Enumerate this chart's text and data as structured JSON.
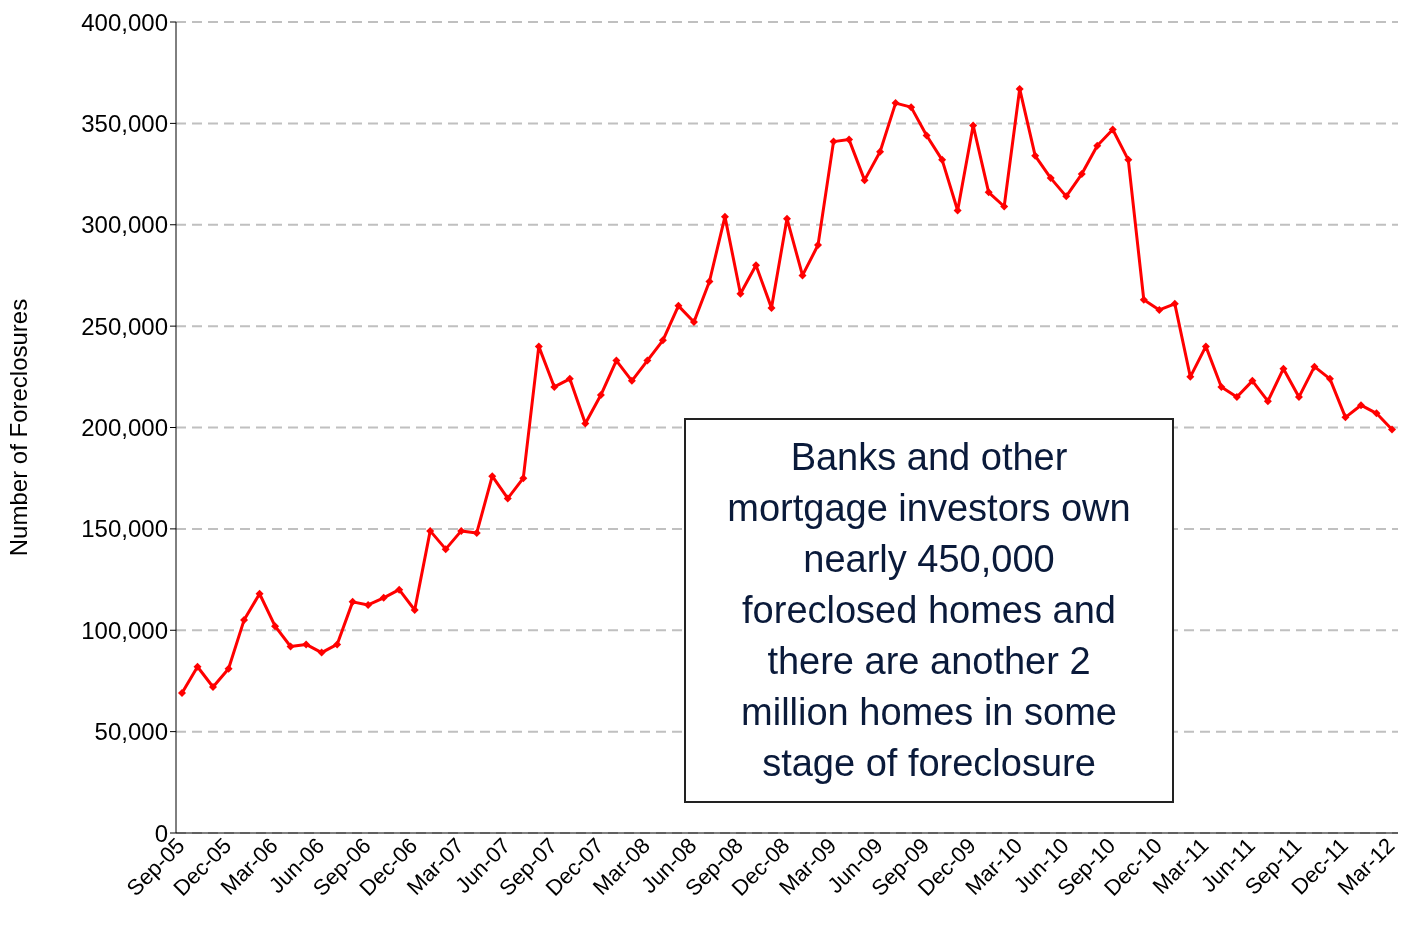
{
  "chart_data": {
    "type": "line",
    "ylabel": "Number of Foreclosures",
    "categories": [
      "Sep-05",
      null,
      null,
      "Dec-05",
      null,
      null,
      "Mar-06",
      null,
      null,
      "Jun-06",
      null,
      null,
      "Sep-06",
      null,
      null,
      "Dec-06",
      null,
      null,
      "Mar-07",
      null,
      null,
      "Jun-07",
      null,
      null,
      "Sep-07",
      null,
      null,
      "Dec-07",
      null,
      null,
      "Mar-08",
      null,
      null,
      "Jun-08",
      null,
      null,
      "Sep-08",
      null,
      null,
      "Dec-08",
      null,
      null,
      "Mar-09",
      null,
      null,
      "Jun-09",
      null,
      null,
      "Sep-09",
      null,
      null,
      "Dec-09",
      null,
      null,
      "Mar-10",
      null,
      null,
      "Jun-10",
      null,
      null,
      "Sep-10",
      null,
      null,
      "Dec-10",
      null,
      null,
      "Mar-11",
      null,
      null,
      "Jun-11",
      null,
      null,
      "Sep-11",
      null,
      null,
      "Dec-11",
      null,
      null,
      "Mar-12"
    ],
    "series": [
      {
        "color": "#ff0000",
        "values": [
          69000,
          82000,
          72000,
          81000,
          105000,
          118000,
          102000,
          92000,
          93000,
          89000,
          93000,
          114000,
          112500,
          116000,
          120000,
          110000,
          149000,
          140000,
          149000,
          148000,
          176000,
          165000,
          175000,
          240000,
          220000,
          224000,
          202000,
          216000,
          233000,
          223000,
          233000,
          243000,
          260000,
          252000,
          272000,
          304000,
          266000,
          280000,
          259000,
          303000,
          275000,
          290000,
          341000,
          342000,
          322000,
          336000,
          360000,
          358000,
          344000,
          332000,
          307000,
          349000,
          316000,
          309000,
          367000,
          334000,
          323000,
          314000,
          325000,
          339000,
          347000,
          332000,
          263000,
          258000,
          261000,
          225000,
          240000,
          220000,
          215000,
          223000,
          213000,
          229000,
          215000,
          230000,
          224000,
          205000,
          211000,
          207000,
          199000
        ]
      }
    ],
    "ylim": [
      0,
      400000
    ],
    "yticks": [
      0,
      {
        "value": 50000,
        "label": "50,000"
      },
      {
        "value": 100000,
        "label": "100,000"
      },
      {
        "value": 150000,
        "label": "150,000"
      },
      {
        "value": 200000,
        "label": "200,000"
      },
      {
        "value": 250000,
        "label": "250,000"
      },
      {
        "value": 300000,
        "label": "300,000"
      },
      {
        "value": 350000,
        "label": "350,000"
      },
      {
        "value": 400000,
        "label": "400,000"
      }
    ],
    "grid": "y",
    "marker": "diamond",
    "line_style": "solid",
    "annotations": [
      "Banks and other mortgage investors own nearly 450,000 foreclosed homes and there are another 2 million homes in some stage of foreclosure"
    ]
  }
}
